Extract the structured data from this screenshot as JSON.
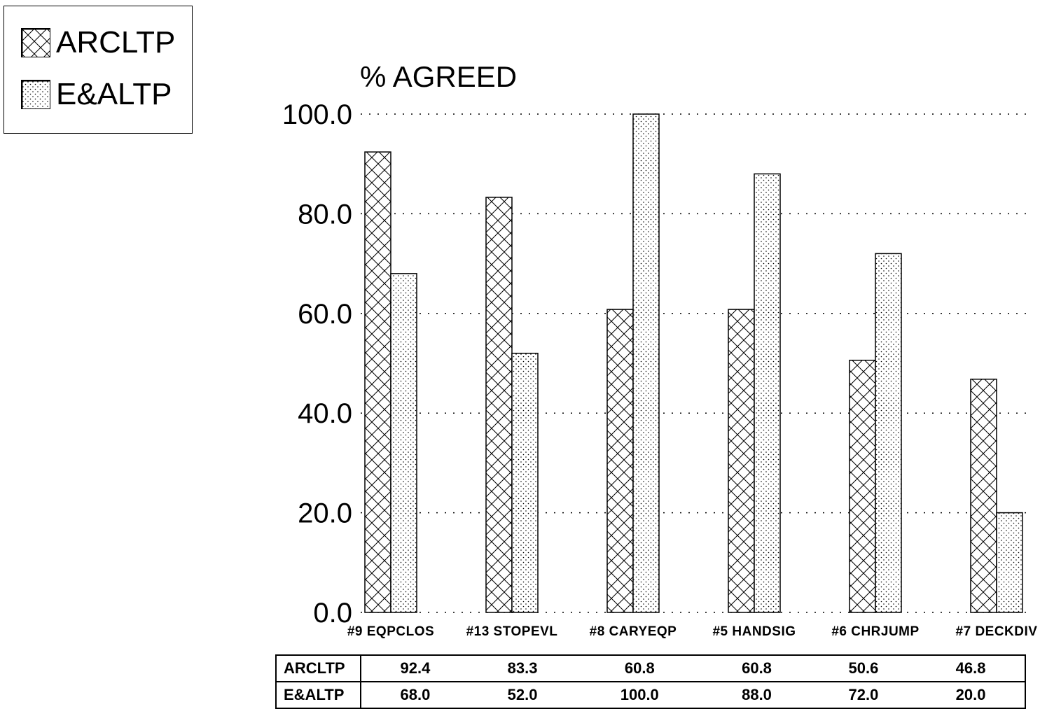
{
  "chart_data": {
    "type": "bar",
    "ylabel": "% AGREED",
    "ylim": [
      0,
      100
    ],
    "yticks": [
      "0.0",
      "20.0",
      "40.0",
      "60.0",
      "80.0",
      "100.0"
    ],
    "grid": true,
    "legend_position": "top-left",
    "categories": [
      "#9 EQPCLOS",
      "#13 STOPEVL",
      "#8 CARYEQP",
      "#5 HANDSIG",
      "#6 CHRJUMP",
      "#7 DECKDIV"
    ],
    "series": [
      {
        "name": "ARCLTP",
        "values": [
          92.4,
          83.3,
          60.8,
          60.8,
          50.6,
          46.8
        ],
        "labels": [
          "92.4",
          "83.3",
          "60.8",
          "60.8",
          "50.6",
          "46.8"
        ],
        "pattern": "crosshatch"
      },
      {
        "name": "E&ALTP",
        "values": [
          68.0,
          52.0,
          100.0,
          88.0,
          72.0,
          20.0
        ],
        "labels": [
          "68.0",
          "52.0",
          "100.0",
          "88.0",
          "72.0",
          "20.0"
        ],
        "pattern": "dots"
      }
    ]
  }
}
